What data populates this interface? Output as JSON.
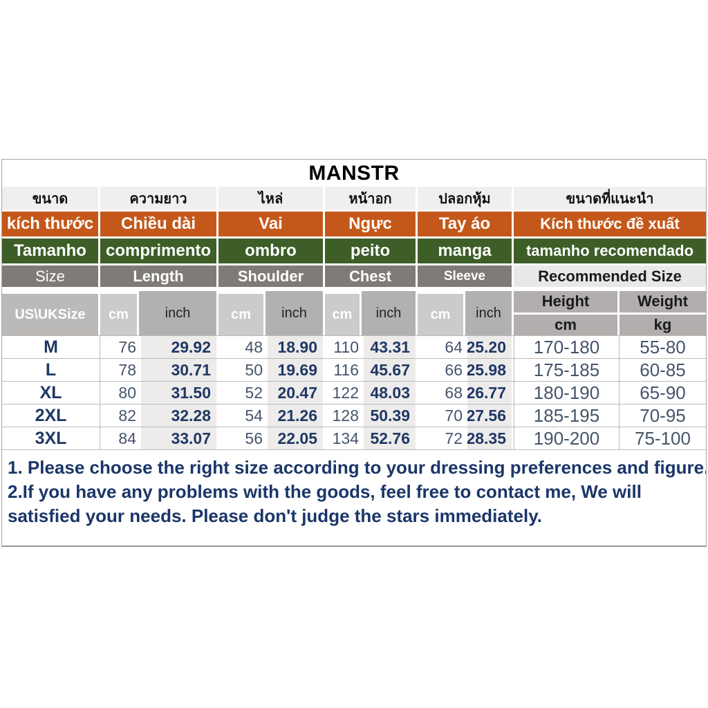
{
  "title": "MANSTR",
  "colors": {
    "orange": "#C4581A",
    "green": "#3D5E27",
    "navy": "#1F3864",
    "gray_blue": "#44546A",
    "header_gray": "#7F7B76"
  },
  "header_rows": {
    "thai": {
      "cells": [
        "ขนาด",
        "ความยาว",
        "ไหล่",
        "หน้าอก",
        "ปลอกหุ้ม",
        "ขนาดที่แนะนำ"
      ]
    },
    "vietnamese": {
      "cells": [
        "kích thước",
        "Chiều dài",
        "Vai",
        "Ngực",
        "Tay áo",
        "Kích thước đề xuất"
      ]
    },
    "portuguese": {
      "cells": [
        "Tamanho",
        "comprimento",
        "ombro",
        "peito",
        "manga",
        "tamanho recomendado"
      ]
    },
    "english": {
      "cells": [
        "Size",
        "Length",
        "Shoulder",
        "Chest",
        "Sleeve",
        "Recommended Size"
      ]
    }
  },
  "units_row": {
    "size_label": "US\\UKSize",
    "cm": "cm",
    "inch": "inch",
    "height_label": "Height",
    "weight_label": "Weight",
    "height_unit": "cm",
    "weight_unit": "kg"
  },
  "sizes": [
    {
      "size": "M",
      "length_cm": "76",
      "length_inch": "29.92",
      "shoulder_cm": "48",
      "shoulder_inch": "18.90",
      "chest_cm": "110",
      "chest_inch": "43.31",
      "sleeve_cm": "64",
      "sleeve_inch": "25.20",
      "height_cm": "170-180",
      "weight_kg": "55-80"
    },
    {
      "size": "L",
      "length_cm": "78",
      "length_inch": "30.71",
      "shoulder_cm": "50",
      "shoulder_inch": "19.69",
      "chest_cm": "116",
      "chest_inch": "45.67",
      "sleeve_cm": "66",
      "sleeve_inch": "25.98",
      "height_cm": "175-185",
      "weight_kg": "60-85"
    },
    {
      "size": "XL",
      "length_cm": "80",
      "length_inch": "31.50",
      "shoulder_cm": "52",
      "shoulder_inch": "20.47",
      "chest_cm": "122",
      "chest_inch": "48.03",
      "sleeve_cm": "68",
      "sleeve_inch": "26.77",
      "height_cm": "180-190",
      "weight_kg": "65-90"
    },
    {
      "size": "2XL",
      "length_cm": "82",
      "length_inch": "32.28",
      "shoulder_cm": "54",
      "shoulder_inch": "21.26",
      "chest_cm": "128",
      "chest_inch": "50.39",
      "sleeve_cm": "70",
      "sleeve_inch": "27.56",
      "height_cm": "185-195",
      "weight_kg": "70-95"
    },
    {
      "size": "3XL",
      "length_cm": "84",
      "length_inch": "33.07",
      "shoulder_cm": "56",
      "shoulder_inch": "22.05",
      "chest_cm": "134",
      "chest_inch": "52.76",
      "sleeve_cm": "72",
      "sleeve_inch": "28.35",
      "height_cm": "190-200",
      "weight_kg": "75-100"
    }
  ],
  "notes": {
    "line1": "1. Please choose the right size according to your dressing preferences and figure.",
    "line2": "2.If you have any problems with the goods, feel free to contact me, We will",
    "line3": "satisfied your needs. Please don't judge the stars immediately."
  }
}
